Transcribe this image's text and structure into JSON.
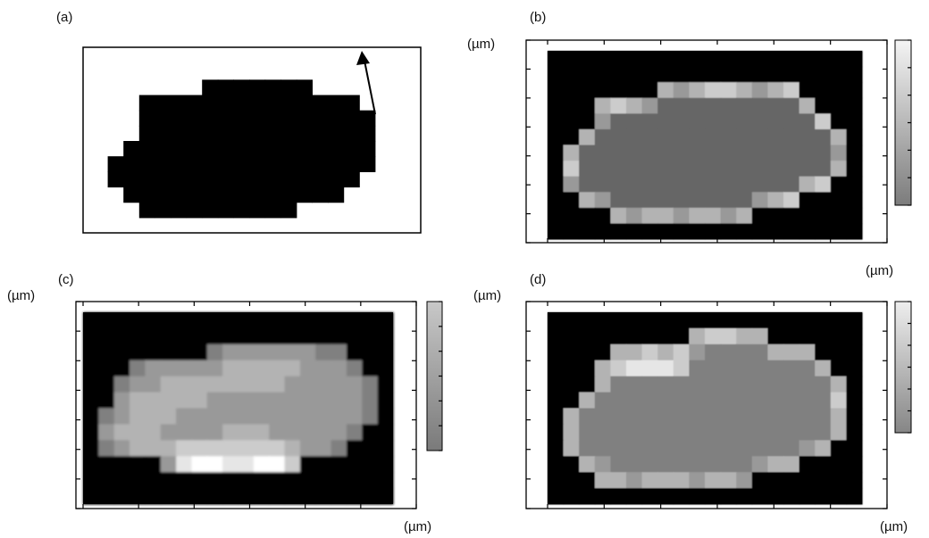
{
  "chart_data": [
    {
      "title": "(a)",
      "type": "heatmap",
      "shape_color": "#000000",
      "z": [
        [
          0,
          0,
          0,
          0,
          0,
          0,
          0,
          0,
          0,
          0,
          0,
          0,
          0,
          0,
          0,
          0,
          0,
          0,
          0,
          0
        ],
        [
          0,
          0,
          0,
          0,
          0,
          0,
          0,
          0,
          0,
          0,
          0,
          0,
          0,
          0,
          0,
          0,
          0,
          0,
          0,
          0
        ],
        [
          0,
          0,
          0,
          0,
          0,
          0,
          0,
          1,
          1,
          1,
          1,
          1,
          1,
          1,
          0,
          0,
          0,
          0,
          0,
          0
        ],
        [
          0,
          0,
          0,
          1,
          1,
          1,
          1,
          1,
          1,
          1,
          1,
          1,
          1,
          1,
          1,
          1,
          1,
          0,
          0,
          0
        ],
        [
          0,
          0,
          0,
          1,
          1,
          1,
          1,
          1,
          1,
          1,
          1,
          1,
          1,
          1,
          1,
          1,
          1,
          1,
          0,
          0
        ],
        [
          0,
          0,
          0,
          1,
          1,
          1,
          1,
          1,
          1,
          1,
          1,
          1,
          1,
          1,
          1,
          1,
          1,
          1,
          0,
          0
        ],
        [
          0,
          0,
          1,
          1,
          1,
          1,
          1,
          1,
          1,
          1,
          1,
          1,
          1,
          1,
          1,
          1,
          1,
          1,
          0,
          0
        ],
        [
          0,
          1,
          1,
          1,
          1,
          1,
          1,
          1,
          1,
          1,
          1,
          1,
          1,
          1,
          1,
          1,
          1,
          1,
          0,
          0
        ],
        [
          0,
          1,
          1,
          1,
          1,
          1,
          1,
          1,
          1,
          1,
          1,
          1,
          1,
          1,
          1,
          1,
          1,
          0,
          0,
          0
        ],
        [
          0,
          0,
          1,
          1,
          1,
          1,
          1,
          1,
          1,
          1,
          1,
          1,
          1,
          1,
          1,
          1,
          0,
          0,
          0,
          0
        ],
        [
          0,
          0,
          0,
          1,
          1,
          1,
          1,
          1,
          1,
          1,
          1,
          1,
          1,
          0,
          0,
          0,
          0,
          0,
          0,
          0
        ],
        [
          0,
          0,
          0,
          0,
          0,
          0,
          0,
          0,
          0,
          0,
          0,
          0,
          0,
          0,
          0,
          0,
          0,
          0,
          0,
          0
        ]
      ]
    },
    {
      "title": "(b)",
      "type": "heatmap",
      "xlabel": "(µm)",
      "ylabel": "(µm)",
      "colorbar": {
        "top_color": "#f4f4f4",
        "bottom_color": "#7c7c7c"
      },
      "z": [
        [
          0,
          0,
          0,
          0,
          0,
          0,
          0,
          0,
          0,
          0,
          0,
          0,
          0,
          0,
          0,
          0,
          0,
          0,
          0,
          0
        ],
        [
          0,
          0,
          0,
          0,
          0,
          0,
          0,
          0,
          0,
          0,
          0,
          0,
          0,
          0,
          0,
          0,
          0,
          0,
          0,
          0
        ],
        [
          0,
          0,
          0,
          0,
          0,
          0,
          0,
          7,
          6,
          7,
          8,
          8,
          7,
          6,
          7,
          8,
          0,
          0,
          0,
          0
        ],
        [
          0,
          0,
          0,
          7,
          8,
          7,
          6,
          4,
          4,
          4,
          4,
          4,
          4,
          4,
          4,
          4,
          7,
          0,
          0,
          0
        ],
        [
          0,
          0,
          0,
          6,
          4,
          4,
          4,
          4,
          4,
          4,
          4,
          4,
          4,
          4,
          4,
          4,
          4,
          8,
          0,
          0
        ],
        [
          0,
          0,
          7,
          4,
          4,
          4,
          4,
          4,
          4,
          4,
          4,
          4,
          4,
          4,
          4,
          4,
          4,
          4,
          7,
          0
        ],
        [
          0,
          7,
          4,
          4,
          4,
          4,
          4,
          4,
          4,
          4,
          4,
          4,
          4,
          4,
          4,
          4,
          4,
          4,
          6,
          0
        ],
        [
          0,
          8,
          4,
          4,
          4,
          4,
          4,
          4,
          4,
          4,
          4,
          4,
          4,
          4,
          4,
          4,
          4,
          4,
          7,
          0
        ],
        [
          0,
          6,
          4,
          4,
          4,
          4,
          4,
          4,
          4,
          4,
          4,
          4,
          4,
          4,
          4,
          4,
          7,
          8,
          0,
          0
        ],
        [
          0,
          0,
          7,
          6,
          4,
          4,
          4,
          4,
          4,
          4,
          4,
          4,
          4,
          6,
          7,
          8,
          0,
          0,
          0,
          0
        ],
        [
          0,
          0,
          0,
          0,
          7,
          6,
          7,
          7,
          6,
          7,
          7,
          6,
          7,
          0,
          0,
          0,
          0,
          0,
          0,
          0
        ],
        [
          0,
          0,
          0,
          0,
          0,
          0,
          0,
          0,
          0,
          0,
          0,
          0,
          0,
          0,
          0,
          0,
          0,
          0,
          0,
          0
        ]
      ]
    },
    {
      "title": "(c)",
      "type": "heatmap",
      "xlabel": "(µm)",
      "ylabel": "(µm)",
      "colorbar": {
        "top_color": "#c8c8c8",
        "bottom_color": "#7a7a7a"
      },
      "z": [
        [
          0,
          0,
          0,
          0,
          0,
          0,
          0,
          0,
          0,
          0,
          0,
          0,
          0,
          0,
          0,
          0,
          0,
          0,
          0,
          0
        ],
        [
          0,
          0,
          0,
          0,
          0,
          0,
          0,
          0,
          0,
          0,
          0,
          0,
          0,
          0,
          0,
          0,
          0,
          0,
          0,
          0
        ],
        [
          0,
          0,
          0,
          0,
          0,
          0,
          0,
          0,
          5,
          6,
          6,
          6,
          6,
          6,
          6,
          5,
          5,
          0,
          0,
          0
        ],
        [
          0,
          0,
          0,
          5,
          6,
          6,
          6,
          6,
          6,
          7,
          7,
          7,
          7,
          7,
          6,
          6,
          6,
          5,
          0,
          0
        ],
        [
          0,
          0,
          5,
          6,
          6,
          7,
          7,
          7,
          7,
          7,
          7,
          7,
          7,
          6,
          6,
          6,
          6,
          6,
          5,
          0
        ],
        [
          0,
          0,
          6,
          7,
          7,
          7,
          7,
          7,
          6,
          6,
          6,
          6,
          6,
          6,
          6,
          6,
          6,
          6,
          5,
          0
        ],
        [
          0,
          5,
          6,
          7,
          7,
          7,
          6,
          6,
          6,
          6,
          6,
          6,
          6,
          6,
          6,
          6,
          6,
          6,
          5,
          0
        ],
        [
          0,
          6,
          7,
          7,
          7,
          6,
          6,
          6,
          6,
          7,
          7,
          7,
          6,
          6,
          6,
          6,
          6,
          5,
          0,
          0
        ],
        [
          0,
          5,
          6,
          7,
          7,
          7,
          8,
          8,
          8,
          8,
          8,
          8,
          8,
          7,
          6,
          6,
          5,
          0,
          0,
          0
        ],
        [
          0,
          0,
          0,
          0,
          0,
          6,
          9,
          10,
          10,
          9,
          9,
          10,
          10,
          8,
          0,
          0,
          0,
          0,
          0,
          0
        ],
        [
          0,
          0,
          0,
          0,
          0,
          0,
          0,
          0,
          0,
          0,
          0,
          0,
          0,
          0,
          0,
          0,
          0,
          0,
          0,
          0
        ],
        [
          0,
          0,
          0,
          0,
          0,
          0,
          0,
          0,
          0,
          0,
          0,
          0,
          0,
          0,
          0,
          0,
          0,
          0,
          0,
          0
        ]
      ]
    },
    {
      "title": "(d)",
      "type": "heatmap",
      "xlabel": "(µm)",
      "ylabel": "(µm)",
      "colorbar": {
        "top_color": "#eeeeee",
        "bottom_color": "#868686"
      },
      "z": [
        [
          0,
          0,
          0,
          0,
          0,
          0,
          0,
          0,
          0,
          0,
          0,
          0,
          0,
          0,
          0,
          0,
          0,
          0,
          0,
          0
        ],
        [
          0,
          0,
          0,
          0,
          0,
          0,
          0,
          0,
          0,
          7,
          8,
          8,
          7,
          7,
          0,
          0,
          0,
          0,
          0,
          0
        ],
        [
          0,
          0,
          0,
          0,
          7,
          7,
          8,
          7,
          8,
          6,
          5,
          5,
          5,
          5,
          7,
          7,
          7,
          0,
          0,
          0
        ],
        [
          0,
          0,
          0,
          7,
          8,
          9,
          9,
          9,
          8,
          5,
          5,
          5,
          5,
          5,
          5,
          5,
          5,
          7,
          0,
          0
        ],
        [
          0,
          0,
          0,
          7,
          5,
          5,
          5,
          5,
          5,
          5,
          5,
          5,
          5,
          5,
          5,
          5,
          5,
          5,
          7,
          0
        ],
        [
          0,
          0,
          7,
          5,
          5,
          5,
          5,
          5,
          5,
          5,
          5,
          5,
          5,
          5,
          5,
          5,
          5,
          5,
          8,
          0
        ],
        [
          0,
          7,
          5,
          5,
          5,
          5,
          5,
          5,
          5,
          5,
          5,
          5,
          5,
          5,
          5,
          5,
          5,
          5,
          7,
          0
        ],
        [
          0,
          7,
          5,
          5,
          5,
          5,
          5,
          5,
          5,
          5,
          5,
          5,
          5,
          5,
          5,
          5,
          5,
          5,
          7,
          0
        ],
        [
          0,
          7,
          5,
          5,
          5,
          5,
          5,
          5,
          5,
          5,
          5,
          5,
          5,
          5,
          5,
          5,
          6,
          7,
          0,
          0
        ],
        [
          0,
          0,
          7,
          6,
          5,
          5,
          5,
          5,
          5,
          5,
          5,
          5,
          5,
          6,
          7,
          7,
          0,
          0,
          0,
          0
        ],
        [
          0,
          0,
          0,
          7,
          7,
          6,
          7,
          7,
          7,
          6,
          7,
          7,
          6,
          0,
          0,
          0,
          0,
          0,
          0,
          0
        ],
        [
          0,
          0,
          0,
          0,
          0,
          0,
          0,
          0,
          0,
          0,
          0,
          0,
          0,
          0,
          0,
          0,
          0,
          0,
          0,
          0
        ]
      ]
    }
  ]
}
